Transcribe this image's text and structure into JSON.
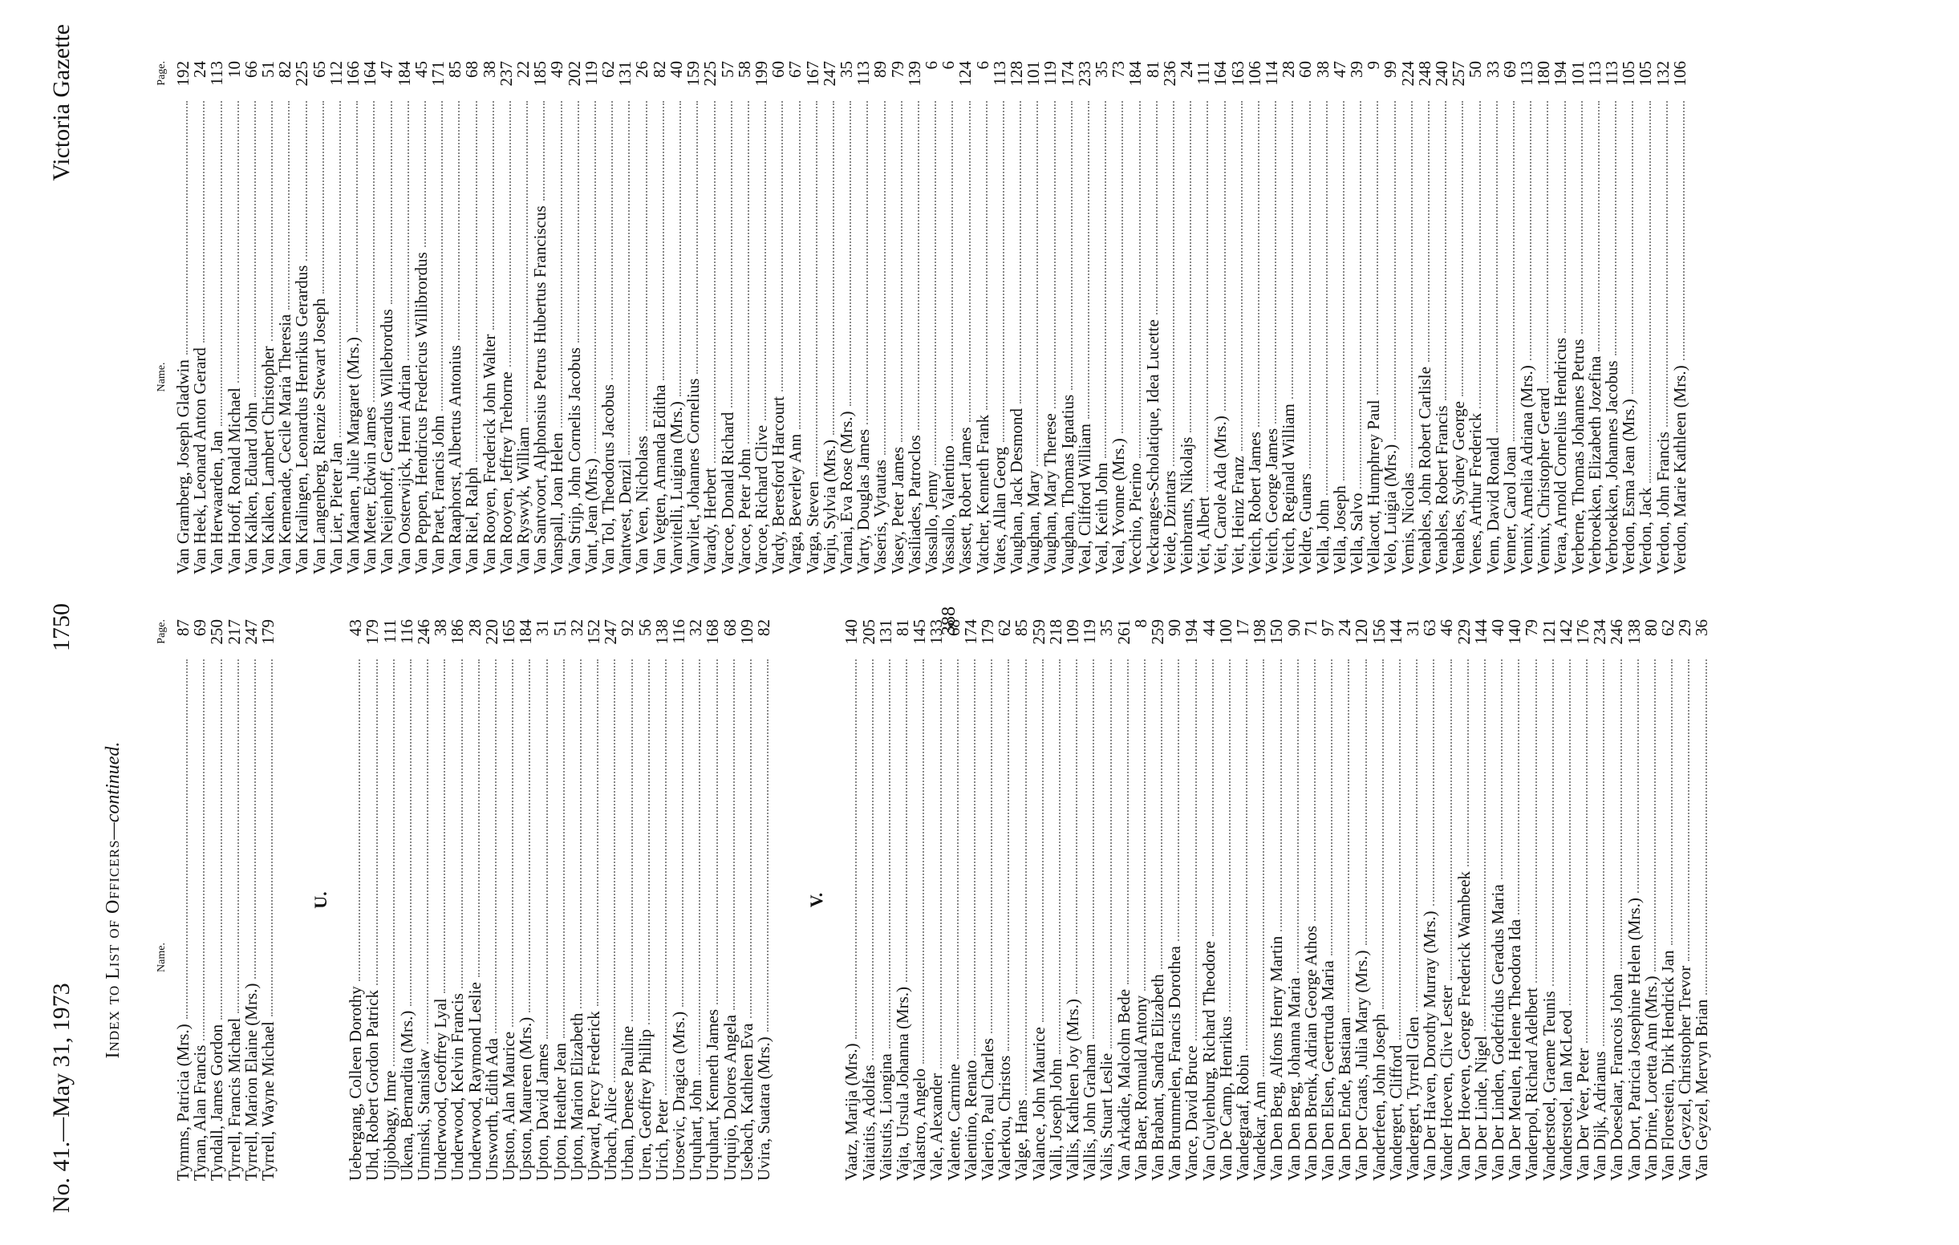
{
  "header": {
    "issue": "No. 41.—May 31, 1973",
    "page_number": "1750",
    "publication": "Victoria Gazette"
  },
  "title": "Index to List of Officers",
  "title_suffix": "—continued.",
  "stamp": "388",
  "columns": [
    {
      "name_heading": "Name.",
      "page_heading": "Page.",
      "groups": [
        {
          "entries": [
            [
              "Tymms, Patricia (Mrs.)",
              87
            ],
            [
              "Tynan, Alan Francis",
              69
            ],
            [
              "Tyndall, James Gordon",
              250
            ],
            [
              "Tyrrell, Francis Michael",
              217
            ],
            [
              "Tyrrell, Marion Elaine (Mrs.)",
              247
            ],
            [
              "Tyrrell, Wayne Michael",
              179
            ]
          ]
        },
        {
          "letter": "U.",
          "entries": [
            [
              "Uebergang, Colleen Dorothy",
              43
            ],
            [
              "Uhd, Robert Gordon Patrick",
              179
            ],
            [
              "Ujjobbagy, Imre",
              111
            ],
            [
              "Ukena, Bernardita (Mrs.)",
              116
            ],
            [
              "Uminski, Stanislaw",
              246
            ],
            [
              "Underwood, Geoffrey Lyal",
              38
            ],
            [
              "Underwood, Kelvin Francis",
              186
            ],
            [
              "Underwood, Raymond Leslie",
              28
            ],
            [
              "Unsworth, Edith Ada",
              220
            ],
            [
              "Upston, Alan Maurice",
              165
            ],
            [
              "Upston, Maureen (Mrs.)",
              184
            ],
            [
              "Upton, David James",
              31
            ],
            [
              "Upton, Heather Jean",
              51
            ],
            [
              "Upton, Marion Elizabeth",
              32
            ],
            [
              "Upward, Percy Frederick",
              152
            ],
            [
              "Urbach, Alice",
              247
            ],
            [
              "Urban, Denese Pauline",
              92
            ],
            [
              "Uren, Geoffrey Phillip",
              56
            ],
            [
              "Urich, Peter",
              138
            ],
            [
              "Urosevic, Dragica (Mrs.)",
              116
            ],
            [
              "Urquhart, John",
              32
            ],
            [
              "Urquhart, Kenneth James",
              168
            ],
            [
              "Urquijo, Dolores Angela",
              68
            ],
            [
              "Usebach, Kathleen Eva",
              109
            ],
            [
              "Uvira, Suatara (Mrs.)",
              82
            ]
          ]
        },
        {
          "letter": "V.",
          "entries": [
            [
              "Vaatz, Marija (Mrs.)",
              140
            ],
            [
              "Vaitaitis, Adolfas",
              205
            ],
            [
              "Vaitsutis, Liongina",
              131
            ],
            [
              "Vajta, Ursula Johanna (Mrs.)",
              81
            ],
            [
              "Valastro, Angelo",
              145
            ],
            [
              "Vale, Alexander",
              133
            ],
            [
              "Valente, Carmine",
              68
            ],
            [
              "Valentino, Renato",
              174
            ],
            [
              "Valerio, Paul Charles",
              179
            ],
            [
              "Valerkou, Christos",
              62
            ],
            [
              "Valge, Hans",
              85
            ],
            [
              "Valance, John Maurice",
              259
            ],
            [
              "Valli, Joseph John",
              218
            ],
            [
              "Vallis, Kathleen Joy (Mrs.)",
              109
            ],
            [
              "Vallis, John Graham",
              119
            ],
            [
              "Valis, Stuart Leslie",
              35
            ],
            [
              "Van Arkadie, Malcolm Bede",
              261
            ],
            [
              "Van Baer, Romuald Antony",
              8
            ],
            [
              "Van Brabant, Sandra Elizabeth",
              259
            ],
            [
              "Van Brummelen, Francis Dorothea",
              90
            ],
            [
              "Vance, David Bruce",
              194
            ],
            [
              "Van Cuylenburg, Richard Theodore",
              44
            ],
            [
              "Van De Camp, Henrikus",
              100
            ],
            [
              "Vandegraaf, Robin",
              17
            ],
            [
              "Vandekar, Ann",
              198
            ],
            [
              "Van Den Berg, Alfons Henry Martin",
              150
            ],
            [
              "Van Den Berg, Johanna Maria",
              90
            ],
            [
              "Van Den Brenk, Adrian George Athos",
              71
            ],
            [
              "Van Den Elsen, Geertruda Maria",
              97
            ],
            [
              "Van Den Ende, Bastiaan",
              24
            ],
            [
              "Van Der Craats, Julia Mary (Mrs.)",
              120
            ],
            [
              "Vanderfeen, John Joseph",
              156
            ],
            [
              "Vandergert, Clifford",
              144
            ],
            [
              "Vandergert, Tyrrell Glen",
              31
            ],
            [
              "Van Der Haven, Dorothy Murray (Mrs.)",
              63
            ],
            [
              "Vander Hoeven, Clive Lester",
              46
            ],
            [
              "Van Der Hoeven, George Frederick Wambeek",
              229
            ],
            [
              "Van Der Linde, Nigel",
              144
            ],
            [
              "Van Der Linden, Godefridus Geradus Maria",
              40
            ],
            [
              "Van Der Meulen, Helene Theodora Ida",
              140
            ],
            [
              "Vanderpol, Richard Adelbert",
              79
            ],
            [
              "Vanderstoel, Graeme Teunis",
              121
            ],
            [
              "Vanderstoel, Ian McLeod",
              142
            ],
            [
              "Van Der Veer, Peter",
              176
            ],
            [
              "Van Dijk, Adrianus",
              234
            ],
            [
              "Van Doeselaar, Francois Johan",
              246
            ],
            [
              "Van Dort, Patricia Josephine Helen (Mrs.)",
              138
            ],
            [
              "Van Drine, Loretta Ann (Mrs.)",
              80
            ],
            [
              "Van Florestein, Dirk Hendrick Jan",
              62
            ],
            [
              "Van Geyzel, Christopher Trevor",
              29
            ],
            [
              "Van Geyzel, Mervyn Brian",
              36
            ]
          ]
        }
      ]
    },
    {
      "name_heading": "Name.",
      "page_heading": "Page.",
      "groups": [
        {
          "entries": [
            [
              "Van Gramberg, Joseph Gladwin",
              192
            ],
            [
              "Van Heek, Leonard Anton Gerard",
              24
            ],
            [
              "Van Herwaarden, Jan",
              113
            ],
            [
              "Van Hooff, Ronald Michael",
              10
            ],
            [
              "Van Kalken, Eduard John",
              66
            ],
            [
              "Van Kalken, Lambert Christopher",
              51
            ],
            [
              "Van Kemenade, Cecile Maria Theresia",
              82
            ],
            [
              "Van Kralingen, Leonardus Henrikus Gerardus",
              225
            ],
            [
              "Van Langenberg, Rienzie Stewart Joseph",
              65
            ],
            [
              "Van Lier, Pieter Jan",
              112
            ],
            [
              "Van Maanen, Julie Margaret (Mrs.)",
              166
            ],
            [
              "Van Meter, Edwin James",
              164
            ],
            [
              "Van Neijenhoff, Gerardus Willebrordus",
              47
            ],
            [
              "Van Oosterwijck, Henri Adrian",
              184
            ],
            [
              "Van Peppen, Hendricus Fredericus Willibrordus",
              45
            ],
            [
              "Van Praet, Francis John",
              171
            ],
            [
              "Van Raaphorst, Albertus Antonius",
              85
            ],
            [
              "Van Riel, Ralph",
              68
            ],
            [
              "Van Rooyen, Frederick John Walter",
              38
            ],
            [
              "Van Rooyen, Jeffrey Trehorne",
              237
            ],
            [
              "Van Ryswyk, William",
              22
            ],
            [
              "Van Santvoort, Alphonsius Petrus Hubertus Franciscus",
              185
            ],
            [
              "Vanspall, Joan Helen",
              49
            ],
            [
              "Van Strijp, John Cornelis Jacobus",
              202
            ],
            [
              "Vant, Jean (Mrs.)",
              119
            ],
            [
              "Van Tol, Theodorus Jacobus",
              62
            ],
            [
              "Vantwest, Denzil",
              131
            ],
            [
              "Van Veen, Nicholass",
              26
            ],
            [
              "Van Vegten, Amanda Editha",
              82
            ],
            [
              "Vanvitelli, Luigina (Mrs.)",
              40
            ],
            [
              "Vanvliet, Johannes Cornelius",
              159
            ],
            [
              "Varady, Herbert",
              225
            ],
            [
              "Varcoe, Donald Richard",
              57
            ],
            [
              "Varcoe, Peter John",
              58
            ],
            [
              "Varcoe, Richard Clive",
              199
            ],
            [
              "Vardy, Beresford Harcourt",
              60
            ],
            [
              "Varga, Beverley Ann",
              67
            ],
            [
              "Varga, Steven",
              167
            ],
            [
              "Varju, Sylvia (Mrs.)",
              247
            ],
            [
              "Varnai, Eva Rose (Mrs.)",
              35
            ],
            [
              "Varty, Douglas James",
              113
            ],
            [
              "Vaseris, Vytautas",
              89
            ],
            [
              "Vasey, Peter James",
              79
            ],
            [
              "Vasiliades, Patroclos",
              139
            ],
            [
              "Vassallo, Jenny",
              6
            ],
            [
              "Vassallo, Valentino",
              6
            ],
            [
              "Vassett, Robert James",
              124
            ],
            [
              "Vatcher, Kenneth Frank",
              6
            ],
            [
              "Vates, Allan Georg",
              113
            ],
            [
              "Vaughan, Jack Desmond",
              128
            ],
            [
              "Vaughan, Mary",
              101
            ],
            [
              "Vaughan, Mary Therese",
              119
            ],
            [
              "Vaughan, Thomas Ignatius",
              174
            ],
            [
              "Veal, Clifford William",
              233
            ],
            [
              "Veal, Keith John",
              35
            ],
            [
              "Veal, Yvonne (Mrs.)",
              73
            ],
            [
              "Vecchio, Pierino",
              184
            ],
            [
              "Veckranges-Scholatique, Idea Lucette",
              81
            ],
            [
              "Veide, Dzintars",
              236
            ],
            [
              "Veinbrants, Nikolajs",
              24
            ],
            [
              "Veit, Albert",
              111
            ],
            [
              "Veit, Carole Ada (Mrs.)",
              164
            ],
            [
              "Veit, Heinz Franz",
              163
            ],
            [
              "Veitch, Robert James",
              106
            ],
            [
              "Veitch, George James",
              114
            ],
            [
              "Veitch, Reginald William",
              28
            ],
            [
              "Veldre, Gunars",
              60
            ],
            [
              "Vella, John",
              38
            ],
            [
              "Vella, Joseph",
              47
            ],
            [
              "Vella, Salvo",
              39
            ],
            [
              "Vellacott, Humphrey Paul",
              9
            ],
            [
              "Velo, Luigia (Mrs.)",
              99
            ],
            [
              "Vemis, Nicolas",
              224
            ],
            [
              "Venables, John Robert Carlisle",
              248
            ],
            [
              "Venables, Robert Francis",
              240
            ],
            [
              "Venables, Sydney George",
              257
            ],
            [
              "Venes, Arthur Frederick",
              50
            ],
            [
              "Venn, David Ronald",
              33
            ],
            [
              "Venner, Carol Joan",
              69
            ],
            [
              "Vennix, Amelia Adriana (Mrs.)",
              113
            ],
            [
              "Vennix, Christopher Gerard",
              180
            ],
            [
              "Veraa, Arnold Cornelius Hendricus",
              194
            ],
            [
              "Verberne, Thomas Johannes Petrus",
              101
            ],
            [
              "Verbroekken, Elizabeth Jozefina",
              113
            ],
            [
              "Verbroekken, Johannes Jacobus",
              113
            ],
            [
              "Verdon, Esma Jean (Mrs.)",
              105
            ],
            [
              "Verdon, Jack",
              105
            ],
            [
              "Verdon, John Francis",
              132
            ],
            [
              "Verdon, Marie Kathleen (Mrs.)",
              106
            ]
          ]
        }
      ]
    }
  ]
}
